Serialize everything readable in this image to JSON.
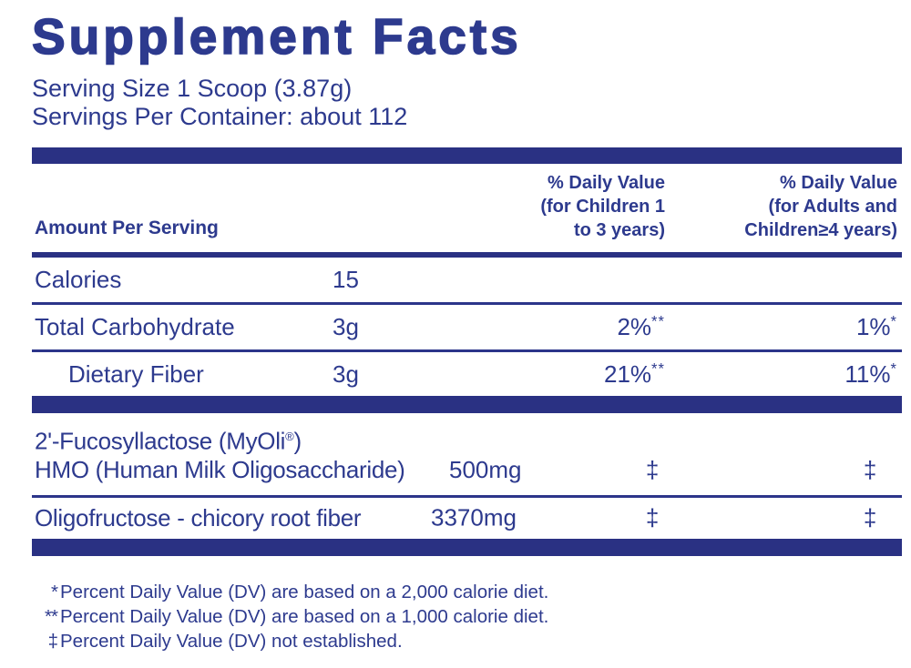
{
  "colors": {
    "text_navy": "#2d3a8e",
    "bar_navy": "#2a3183",
    "background": "#ffffff"
  },
  "title": "Supplement Facts",
  "serving": {
    "size": "Serving Size 1 Scoop (3.87g)",
    "per_container": "Servings Per Container: about 112"
  },
  "header": {
    "amount": "Amount Per Serving",
    "dv_children_lines": [
      "% Daily Value",
      "(for Children 1",
      "to 3 years)"
    ],
    "dv_adults_lines": [
      "% Daily Value",
      "(for Adults and",
      "Children≥4 years)"
    ]
  },
  "rows": [
    {
      "label": "Calories",
      "amount": "15"
    },
    {
      "label": "Total Carbohydrate",
      "amount": "3g",
      "dv_children": "2%",
      "dv_children_note": "**",
      "dv_adults": "1%",
      "dv_adults_note": "*"
    },
    {
      "label": "Dietary Fiber",
      "amount": "3g",
      "dv_children": "21%",
      "dv_children_note": "**",
      "dv_adults": "11%",
      "dv_adults_note": "*"
    }
  ],
  "ingredients": [
    {
      "line1_pre": "2'-Fucosyllactose (MyOli",
      "line1_mark": "®",
      "line1_post": ")",
      "line2": "HMO (Human Milk Oligosaccharide)",
      "amount": "500mg",
      "dv_children": "‡",
      "dv_adults": "‡"
    },
    {
      "label": "Oligofructose - chicory root fiber",
      "amount": "3370mg",
      "dv_children": "‡",
      "dv_adults": "‡"
    }
  ],
  "footnotes": [
    {
      "symbol": "*",
      "text": "Percent Daily Value (DV) are based on a 2,000 calorie diet."
    },
    {
      "symbol": "**",
      "text": "Percent Daily Value (DV) are based on a 1,000 calorie diet."
    },
    {
      "symbol": "‡",
      "text": "Percent Daily Value (DV) not established."
    }
  ]
}
